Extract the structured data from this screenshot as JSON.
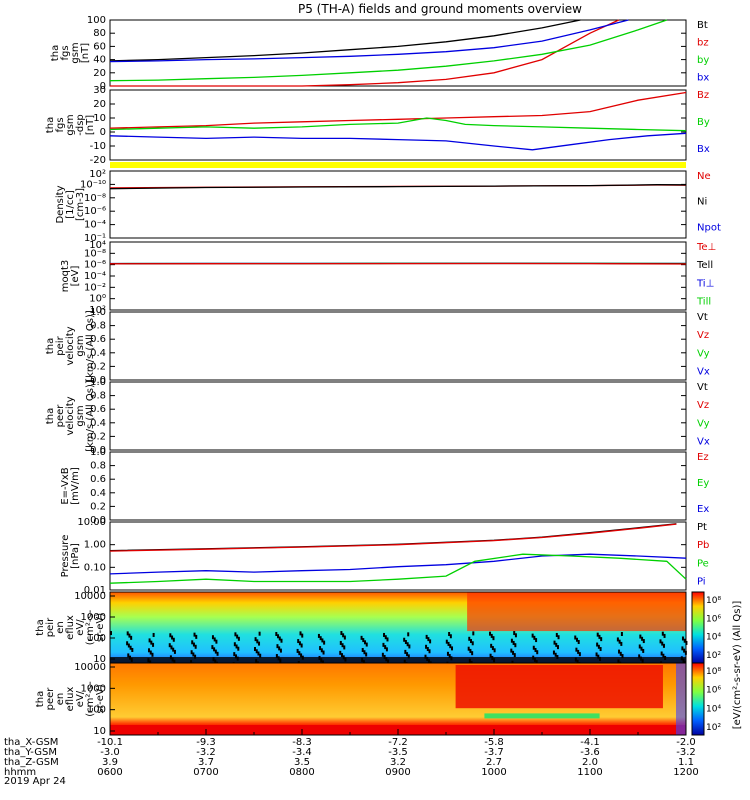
{
  "title": "P5 (TH-A) fields and ground moments overview",
  "date_label": "2019 Apr 24",
  "colors": {
    "black": "#000000",
    "red": "#e00000",
    "green": "#00d000",
    "blue": "#0000e0",
    "yellow": "#ffff00"
  },
  "chart_data": [
    {
      "type": "line",
      "id": "fgs-mag",
      "ylabel": [
        "tha",
        "fgs",
        "gsm",
        "[nT]"
      ],
      "ylim": [
        0,
        100
      ],
      "yticks": [
        "0",
        "20",
        "40",
        "60",
        "80",
        "100"
      ],
      "legend": [
        {
          "name": "Bt",
          "color": "#000000"
        },
        {
          "name": "bz",
          "color": "#e00000"
        },
        {
          "name": "by",
          "color": "#00d000"
        },
        {
          "name": "bx",
          "color": "#0000e0"
        }
      ],
      "series": [
        {
          "name": "Bt",
          "color": "#000000",
          "x": [
            6,
            6.5,
            7,
            7.5,
            8,
            8.5,
            9,
            9.5,
            10,
            10.5,
            10.9
          ],
          "values": [
            38,
            40,
            43,
            46,
            50,
            55,
            60,
            67,
            76,
            88,
            100
          ]
        },
        {
          "name": "bz",
          "color": "#e00000",
          "x": [
            6,
            7,
            8,
            8.5,
            9,
            9.5,
            10,
            10.5,
            11,
            11.3
          ],
          "values": [
            -2,
            -1,
            0,
            2,
            5,
            10,
            20,
            40,
            80,
            100
          ]
        },
        {
          "name": "by",
          "color": "#00d000",
          "x": [
            6,
            6.5,
            7,
            7.5,
            8,
            8.5,
            9,
            9.5,
            10,
            10.5,
            11,
            11.5,
            11.8
          ],
          "values": [
            8,
            9,
            11,
            13,
            16,
            20,
            24,
            30,
            38,
            48,
            62,
            85,
            100
          ]
        },
        {
          "name": "bx",
          "color": "#0000e0",
          "x": [
            6,
            6.5,
            7,
            7.5,
            8,
            8.5,
            9,
            9.5,
            10,
            10.5,
            11,
            11.4
          ],
          "values": [
            37,
            38,
            40,
            41,
            43,
            45,
            48,
            52,
            58,
            68,
            85,
            100
          ]
        }
      ]
    },
    {
      "type": "line",
      "id": "fgs-comp",
      "ylabel": [
        "tha",
        "fgs",
        "gsm",
        "-dsp",
        "[nT]"
      ],
      "ylim": [
        -25,
        30
      ],
      "yticks": [
        "-20",
        "-10",
        "0",
        "10",
        "20",
        "30"
      ],
      "legend": [
        {
          "name": "Bz",
          "color": "#e00000"
        },
        {
          "name": "By",
          "color": "#00d000"
        },
        {
          "name": "Bx",
          "color": "#0000e0"
        }
      ],
      "series": [
        {
          "name": "Bz",
          "color": "#e00000",
          "x": [
            6,
            6.5,
            7,
            7.5,
            8,
            8.5,
            9,
            9.5,
            10,
            10.5,
            11,
            11.5,
            12
          ],
          "values": [
            0,
            1,
            2,
            4,
            5,
            6,
            7,
            8,
            9,
            10,
            13,
            22,
            28
          ]
        },
        {
          "name": "By",
          "color": "#00d000",
          "x": [
            6,
            6.5,
            7,
            7.5,
            8,
            8.5,
            9,
            9.3,
            9.5,
            9.7,
            10,
            10.5,
            11,
            11.5,
            12
          ],
          "values": [
            -1,
            0,
            1,
            0,
            1,
            3,
            4,
            8,
            6,
            3,
            2,
            1,
            0,
            -1,
            -2
          ]
        },
        {
          "name": "Bx",
          "color": "#0000e0",
          "x": [
            6,
            6.5,
            7,
            7.5,
            8,
            8.5,
            9,
            9.5,
            10,
            10.4,
            10.8,
            11.2,
            11.6,
            12
          ],
          "values": [
            -6,
            -7,
            -8,
            -7,
            -8,
            -8,
            -9,
            -10,
            -14,
            -17,
            -13,
            -9,
            -6,
            -4
          ]
        }
      ]
    },
    {
      "type": "line",
      "id": "density",
      "ylabel": [
        "Density",
        "[1/cc]",
        "[cm-3]"
      ],
      "log": true,
      "ylim": [
        -11,
        3
      ],
      "yticks_top": "10²",
      "yticks": [
        "10⁻¹",
        "10⁻⁴",
        "10⁻⁶",
        "10⁻⁸",
        "10⁻¹⁰"
      ],
      "legend": [
        {
          "name": "Ne",
          "color": "#e00000"
        },
        {
          "name": "Ni",
          "color": "#000000"
        },
        {
          "name": "Npot",
          "color": "#0000e0"
        }
      ],
      "series": [
        {
          "name": "Ne",
          "color": "#e00000",
          "x": [
            6,
            7,
            8,
            9,
            10,
            11,
            11.7,
            12
          ],
          "values": [
            0.3,
            0.4,
            0.5,
            0.6,
            0.7,
            0.9,
            1.2,
            1.1
          ]
        },
        {
          "name": "Ni",
          "color": "#000000",
          "x": [
            6,
            7,
            8,
            9,
            10,
            11,
            11.7,
            12
          ],
          "values": [
            0.2,
            0.35,
            0.45,
            0.55,
            0.7,
            0.9,
            1.4,
            1.3
          ]
        }
      ]
    },
    {
      "type": "line",
      "id": "temperature",
      "ylabel": [
        "moqt3",
        "[eV]"
      ],
      "log": true,
      "ylim": [
        -9,
        5
      ],
      "yticks_top": "10⁴",
      "yticks": [
        "10²",
        "10⁰",
        "10⁻²",
        "10⁻⁴",
        "10⁻⁶",
        "10⁻⁸"
      ],
      "legend": [
        {
          "name": "Te⊥",
          "color": "#e00000"
        },
        {
          "name": "Tell",
          "color": "#000000"
        },
        {
          "name": "Ti⊥",
          "color": "#0000e0"
        },
        {
          "name": "Till",
          "color": "#00d000"
        }
      ],
      "series": [
        {
          "name": "Ti⊥",
          "color": "#0000e0",
          "x": [
            6,
            7,
            8,
            9,
            10,
            11,
            12
          ],
          "values": [
            3.8,
            3.9,
            4.0,
            4.0,
            4.1,
            4.0,
            3.9
          ]
        },
        {
          "name": "Till",
          "color": "#00d000",
          "x": [
            6,
            7,
            8,
            9,
            10,
            11,
            12
          ],
          "values": [
            3.6,
            3.7,
            3.8,
            3.9,
            4.0,
            3.9,
            3.7
          ]
        },
        {
          "name": "Tell",
          "color": "#000000",
          "x": [
            6,
            7,
            8,
            9,
            10,
            11,
            12
          ],
          "values": [
            3.4,
            3.5,
            3.6,
            3.7,
            3.8,
            3.7,
            3.2
          ]
        },
        {
          "name": "Te⊥",
          "color": "#e00000",
          "x": [
            6,
            7,
            8,
            9,
            10,
            11,
            12
          ],
          "values": [
            3.3,
            3.4,
            3.5,
            3.6,
            3.7,
            3.6,
            3.0
          ]
        }
      ]
    },
    {
      "type": "line",
      "id": "peir-velocity",
      "ylabel": [
        "tha",
        "peir",
        "velocity",
        "gsm",
        "[km/s (All Qs)]"
      ],
      "ylim": [
        0,
        1
      ],
      "yticks": [
        "0.0",
        "0.2",
        "0.4",
        "0.6",
        "0.8",
        "1.0"
      ],
      "legend": [
        {
          "name": "Vt",
          "color": "#000000"
        },
        {
          "name": "Vz",
          "color": "#e00000"
        },
        {
          "name": "Vy",
          "color": "#00d000"
        },
        {
          "name": "Vx",
          "color": "#0000e0"
        }
      ],
      "series": []
    },
    {
      "type": "line",
      "id": "peer-velocity",
      "ylabel": [
        "tha",
        "peer",
        "velocity",
        "gsm",
        "[km/s (All Qs)]"
      ],
      "ylim": [
        0,
        1
      ],
      "yticks": [
        "0.0",
        "0.2",
        "0.4",
        "0.6",
        "0.8",
        "1.0"
      ],
      "legend": [
        {
          "name": "Vt",
          "color": "#000000"
        },
        {
          "name": "Vz",
          "color": "#e00000"
        },
        {
          "name": "Vy",
          "color": "#00d000"
        },
        {
          "name": "Vx",
          "color": "#0000e0"
        }
      ],
      "series": []
    },
    {
      "type": "line",
      "id": "efield",
      "ylabel": [
        "E=-VxB",
        "[mV/m]"
      ],
      "ylim": [
        0,
        1
      ],
      "yticks": [
        "0.0",
        "0.2",
        "0.4",
        "0.6",
        "0.8",
        "1.0"
      ],
      "legend": [
        {
          "name": "Ez",
          "color": "#e00000"
        },
        {
          "name": "Ey",
          "color": "#00d000"
        },
        {
          "name": "Ex",
          "color": "#0000e0"
        }
      ],
      "series": []
    },
    {
      "type": "line",
      "id": "pressure",
      "ylabel": [
        "Pressure",
        "[nPa]"
      ],
      "log": true,
      "ylim": [
        -2.3,
        1.5
      ],
      "yticks": [
        "0.01",
        "0.10",
        "1.00",
        "10.00"
      ],
      "legend": [
        {
          "name": "Pt",
          "color": "#000000"
        },
        {
          "name": "Pb",
          "color": "#e00000"
        },
        {
          "name": "Pe",
          "color": "#00d000"
        },
        {
          "name": "Pi",
          "color": "#0000e0"
        }
      ],
      "series": [
        {
          "name": "Pt",
          "color": "#000000",
          "x": [
            6,
            7,
            8,
            9,
            10,
            10.5,
            11,
            11.5,
            11.9
          ],
          "values": [
            0.8,
            1.0,
            1.3,
            1.8,
            3.0,
            4.5,
            8,
            15,
            25
          ]
        },
        {
          "name": "Pb",
          "color": "#e00000",
          "x": [
            6,
            7,
            8,
            9,
            10,
            10.5,
            11,
            11.5,
            11.9
          ],
          "values": [
            0.75,
            0.95,
            1.25,
            1.7,
            2.9,
            4.3,
            7.5,
            14,
            24
          ]
        },
        {
          "name": "Pi",
          "color": "#0000e0",
          "x": [
            6,
            6.5,
            7,
            7.5,
            8,
            8.5,
            9,
            9.5,
            10,
            10.5,
            11,
            11.5,
            12
          ],
          "values": [
            0.04,
            0.05,
            0.06,
            0.05,
            0.06,
            0.07,
            0.1,
            0.13,
            0.2,
            0.4,
            0.5,
            0.4,
            0.3
          ]
        },
        {
          "name": "Pe",
          "color": "#00d000",
          "x": [
            6,
            6.5,
            7,
            7.5,
            8,
            8.5,
            9,
            9.5,
            9.8,
            10.3,
            10.8,
            11.3,
            11.8,
            12
          ],
          "values": [
            0.012,
            0.015,
            0.02,
            0.015,
            0.015,
            0.015,
            0.02,
            0.03,
            0.2,
            0.5,
            0.4,
            0.3,
            0.2,
            0.02
          ]
        }
      ]
    },
    {
      "type": "heatmap",
      "id": "peir-eflux",
      "ylabel": [
        "tha",
        "peir",
        "en",
        "eflux",
        "eV/",
        "(cm²-s-",
        "sr-eV)"
      ],
      "yticks": [
        "10",
        "100",
        "1000",
        "10000"
      ],
      "colorbar": {
        "label": "[eV/(cm²-s-sr-eV) (All Qs)]",
        "ticks": [
          "10²",
          "10⁴",
          "10⁶",
          "10⁸"
        ]
      }
    },
    {
      "type": "heatmap",
      "id": "peer-eflux",
      "ylabel": [
        "tha",
        "peer",
        "en",
        "eflux",
        "eV/",
        "(cm²-s-",
        "sr-eV)"
      ],
      "yticks": [
        "10",
        "100",
        "1000",
        "10000"
      ],
      "colorbar": {
        "label": "[eV/(cm²-s-sr-eV) (All Qs)]",
        "ticks": [
          "10²",
          "10⁴",
          "10⁶",
          "10⁸"
        ]
      }
    }
  ],
  "xaxis": {
    "rows": [
      {
        "label": "tha_X-GSM",
        "values": [
          "-10.1",
          "-9.3",
          "-8.3",
          "-7.2",
          "-5.8",
          "-4.1",
          "-2.0"
        ]
      },
      {
        "label": "tha_Y-GSM",
        "values": [
          "-3.0",
          "-3.2",
          "-3.4",
          "-3.5",
          "-3.7",
          "-3.6",
          "-3.2"
        ]
      },
      {
        "label": "tha_Z-GSM",
        "values": [
          "3.9",
          "3.7",
          "3.5",
          "3.2",
          "2.7",
          "2.0",
          "1.1"
        ]
      },
      {
        "label": "hhmm",
        "values": [
          "0600",
          "0700",
          "0800",
          "0900",
          "1000",
          "1100",
          "1200"
        ]
      }
    ]
  }
}
